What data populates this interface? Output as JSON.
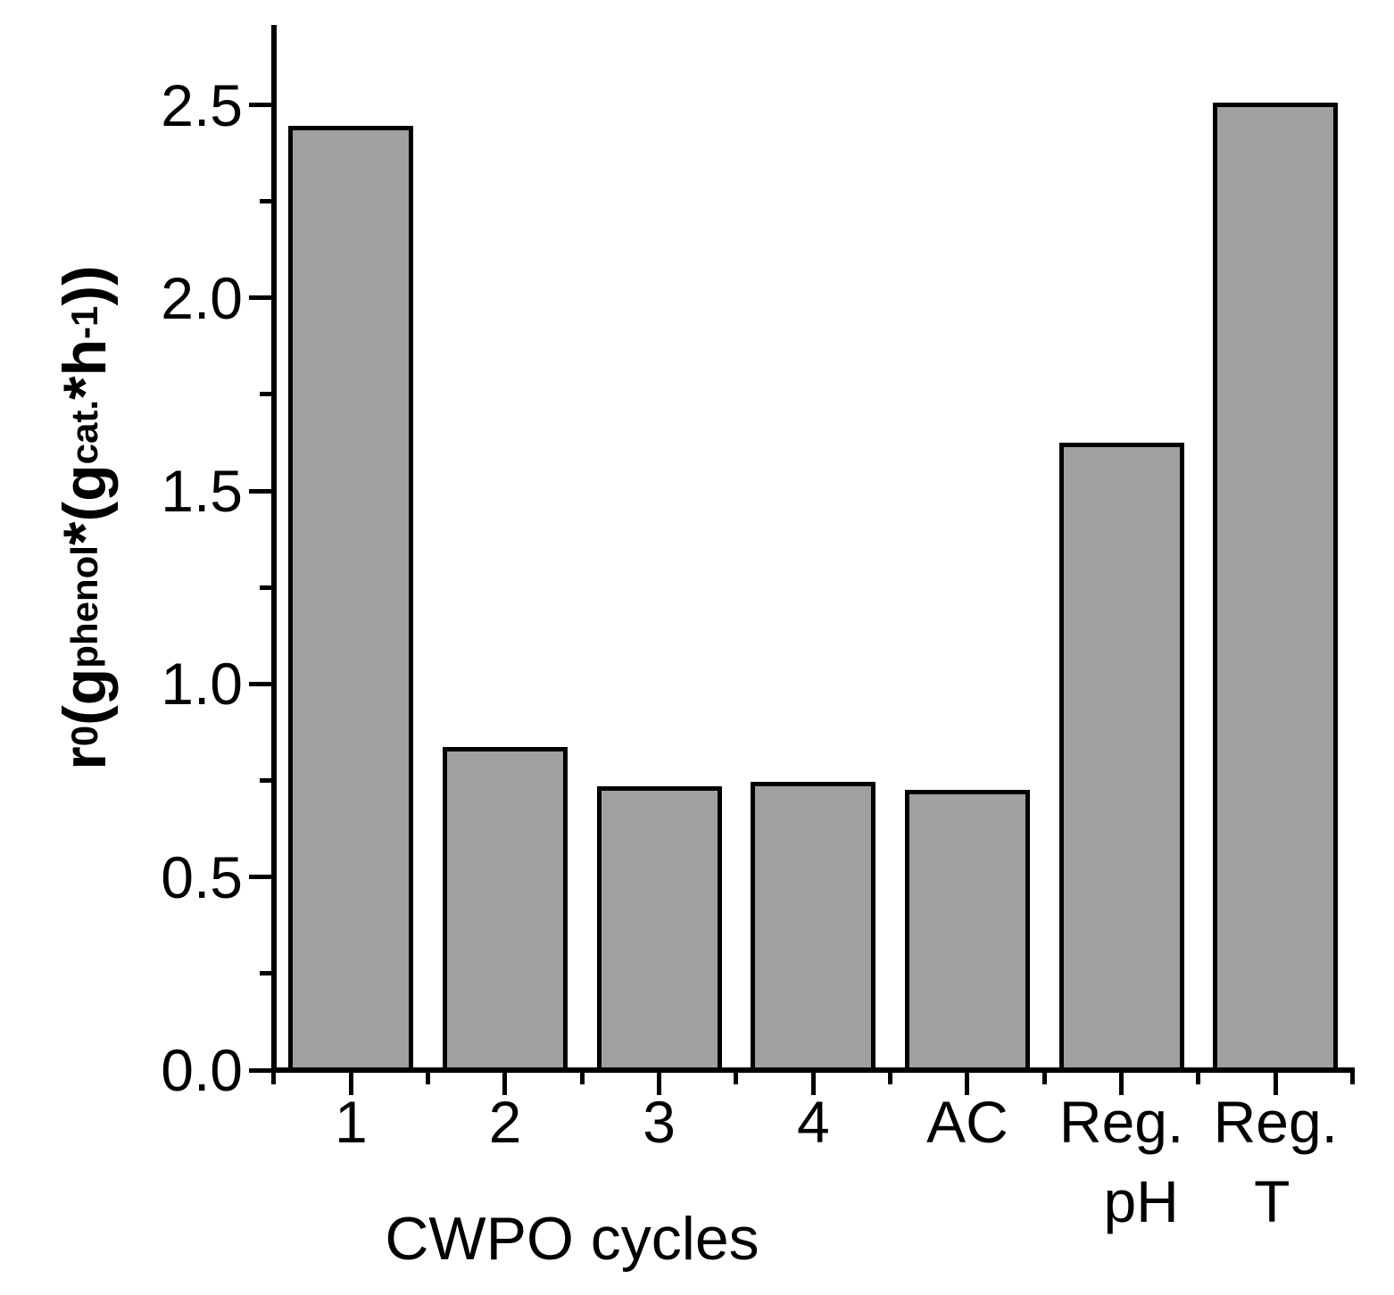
{
  "chart_data": {
    "type": "bar",
    "title": "",
    "xlabel": "CWPO cycles",
    "ylabel": "r0 (gphenol*(gcat.*h-1))",
    "ylabel_segments": [
      [
        "r",
        ""
      ],
      [
        "0",
        "sub"
      ],
      [
        " (g",
        ""
      ],
      [
        "phenol",
        "sub"
      ],
      [
        "*(g",
        ""
      ],
      [
        "cat.",
        "sub"
      ],
      [
        "*h",
        ""
      ],
      [
        "-1",
        "sup"
      ],
      [
        "))",
        ""
      ]
    ],
    "categories": [
      "1",
      "2",
      "3",
      "4",
      "AC",
      "Reg. pH",
      "Reg. T"
    ],
    "category_label_lines": [
      [
        "1"
      ],
      [
        "2"
      ],
      [
        "3"
      ],
      [
        "4"
      ],
      [
        "AC"
      ],
      [
        "Reg.",
        "pH"
      ],
      [
        "Reg.",
        "T"
      ]
    ],
    "values": [
      2.44,
      0.83,
      0.73,
      0.74,
      0.72,
      1.62,
      2.5
    ],
    "ylim": [
      0,
      2.5
    ],
    "ytick_labels": [
      "0.0",
      "0.5",
      "1.0",
      "1.5",
      "2.0",
      "2.5"
    ],
    "minor_ytick_values": [
      0.25,
      0.75,
      1.25,
      1.75,
      2.25
    ],
    "grid": false,
    "legend": "none",
    "bar_fill": "#a0a0a0",
    "bar_border": "#000000",
    "axis_color": "#000000",
    "background": "#ffffff"
  }
}
